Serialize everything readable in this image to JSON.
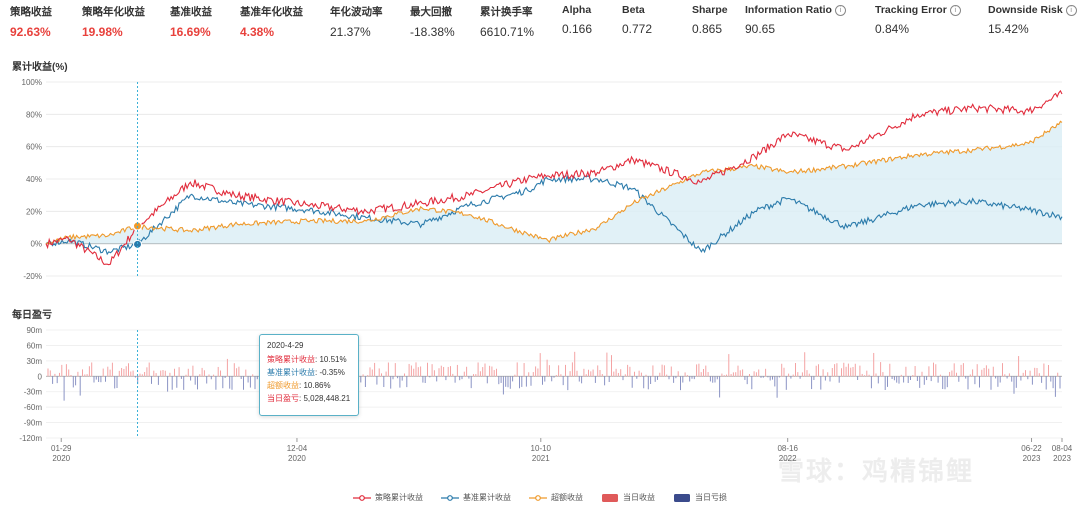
{
  "metrics": [
    {
      "label": "策略收益",
      "value": "92.63%",
      "highlight": true,
      "info": false
    },
    {
      "label": "策略年化收益",
      "value": "19.98%",
      "highlight": true,
      "info": false
    },
    {
      "label": "基准收益",
      "value": "16.69%",
      "highlight": true,
      "info": false
    },
    {
      "label": "基准年化收益",
      "value": "4.38%",
      "highlight": true,
      "info": false
    },
    {
      "label": "年化波动率",
      "value": "21.37%",
      "highlight": false,
      "info": false
    },
    {
      "label": "最大回撤",
      "value": "-18.38%",
      "highlight": false,
      "info": false
    },
    {
      "label": "累计换手率",
      "value": "6610.71%",
      "highlight": false,
      "info": false
    },
    {
      "label": "Alpha",
      "value": "0.166",
      "highlight": false,
      "info": false
    },
    {
      "label": "Beta",
      "value": "0.772",
      "highlight": false,
      "info": false
    },
    {
      "label": "Sharpe",
      "value": "0.865",
      "highlight": false,
      "info": false
    },
    {
      "label": "Information Ratio",
      "value": "90.65",
      "highlight": false,
      "info": true
    },
    {
      "label": "Tracking Error",
      "value": "0.84%",
      "highlight": false,
      "info": true
    },
    {
      "label": "Downside Risk",
      "value": "15.42%",
      "highlight": false,
      "info": true
    }
  ],
  "info_glyph": "i",
  "colors": {
    "strategy": "#e12c3c",
    "benchmark": "#2b7bab",
    "excess": "#ef9a2c",
    "excess_fill": "#d9eef5",
    "profit": "#f4a3a3",
    "loss": "#8a93c4",
    "legend_profit": "#e05a5a",
    "legend_loss": "#3b4b8c",
    "crosshair": "#3ab0d8"
  },
  "chart_data": [
    {
      "type": "line",
      "title": "累计收益(%)",
      "ylim": [
        -20,
        100
      ],
      "yticks": [
        "100%",
        "80%",
        "60%",
        "40%",
        "20%",
        "0%",
        "-20%"
      ],
      "ytick_values": [
        100,
        80,
        60,
        40,
        20,
        0,
        -20
      ],
      "x": [
        "2020-01-02",
        "2020-01-31",
        "2020-03-23",
        "2020-04-29",
        "2020-07-06",
        "2020-09-01",
        "2020-12-04",
        "2021-02-18",
        "2021-05-01",
        "2021-07-01",
        "2021-09-14",
        "2021-10-10",
        "2021-12-13",
        "2022-01-28",
        "2022-04-26",
        "2022-07-04",
        "2022-08-16",
        "2022-10-31",
        "2023-01-30",
        "2023-04-13",
        "2023-06-22",
        "2023-08-04"
      ],
      "series": [
        {
          "name": "策略累计收益",
          "values": [
            0,
            3,
            -13,
            10.5,
            38,
            30,
            24,
            20,
            25,
            30,
            40,
            42,
            44,
            52,
            38,
            54,
            68,
            58,
            80,
            84,
            82,
            92.6
          ]
        },
        {
          "name": "基准累计收益",
          "values": [
            0,
            2,
            -5,
            -0.4,
            30,
            25,
            21,
            16,
            12,
            24,
            33,
            40,
            40,
            34,
            -5,
            20,
            28,
            10,
            24,
            26,
            21,
            16.7
          ]
        },
        {
          "name": "超额收益",
          "values": [
            0,
            4,
            5,
            10.9,
            8,
            12,
            14,
            14,
            22,
            18,
            6,
            2,
            10,
            25,
            44,
            48,
            44,
            48,
            55,
            58,
            62,
            75
          ]
        }
      ],
      "tooltip_index": 3
    },
    {
      "type": "bar",
      "title": "每日盈亏",
      "ylim": [
        -120,
        90
      ],
      "yticks": [
        "90m",
        "60m",
        "30m",
        "0",
        "-30m",
        "-60m",
        "-90m",
        "-120m"
      ],
      "ytick_values": [
        90,
        60,
        30,
        0,
        -30,
        -60,
        -90,
        -120
      ],
      "xticks": [
        {
          "date": "01-29",
          "year": "2020",
          "pos": 0.015
        },
        {
          "date": "12-04",
          "year": "2020",
          "pos": 0.247
        },
        {
          "date": "10-10",
          "year": "2021",
          "pos": 0.487
        },
        {
          "date": "08-16",
          "year": "2022",
          "pos": 0.73
        },
        {
          "date": "06-22",
          "year": "2023",
          "pos": 0.97
        },
        {
          "date": "08-04",
          "year": "2023",
          "pos": 1.0
        }
      ],
      "series": [
        {
          "name": "当日收益"
        },
        {
          "name": "当日亏损"
        }
      ]
    }
  ],
  "tooltip": {
    "date": "2020-4-29",
    "lines": [
      {
        "label": "策略累计收益",
        "value": "10.51%",
        "color": "#e12c3c"
      },
      {
        "label": "基准累计收益",
        "value": "-0.35%",
        "color": "#2b7bab"
      },
      {
        "label": "超额收益",
        "value": "10.86%",
        "color": "#ef9a2c"
      },
      {
        "label": "当日盈亏",
        "value": "5,028,448.21",
        "color": "#e12c3c"
      }
    ]
  },
  "legend": [
    {
      "label": "策略累计收益",
      "kind": "line",
      "color": "#e12c3c"
    },
    {
      "label": "基准累计收益",
      "kind": "line",
      "color": "#2b7bab"
    },
    {
      "label": "超额收益",
      "kind": "line",
      "color": "#ef9a2c"
    },
    {
      "label": "当日收益",
      "kind": "box",
      "color": "#e05a5a"
    },
    {
      "label": "当日亏损",
      "kind": "box",
      "color": "#3b4b8c"
    }
  ],
  "watermark": "雪球：鸡精锦鲤"
}
